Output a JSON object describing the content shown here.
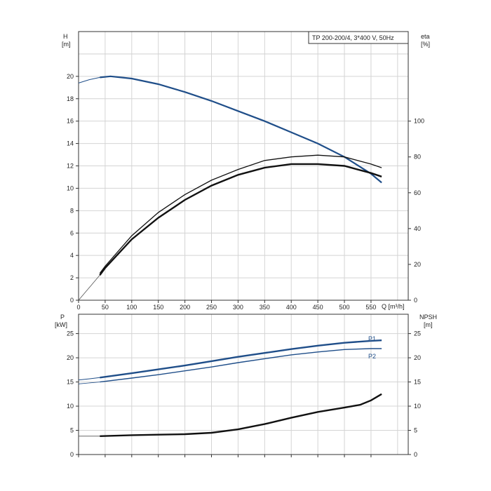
{
  "chart_data": [
    {
      "type": "line",
      "title": "TP 200-200/4, 3*400 V, 50Hz",
      "xlabel": "Q [m³/h]",
      "ylabel": "H\n[m]",
      "ylabel_right": "eta\n[%]",
      "xlim": [
        0,
        620
      ],
      "ylim": [
        0,
        24
      ],
      "ylim_right": [
        0,
        150
      ],
      "x_ticks": [
        "0",
        "50",
        "100",
        "150",
        "200",
        "250",
        "300",
        "350",
        "400",
        "450",
        "500",
        "550"
      ],
      "y_ticks": [
        "0",
        "2",
        "4",
        "6",
        "8",
        "10",
        "12",
        "14",
        "16",
        "18",
        "20"
      ],
      "y_right_ticks": [
        "0",
        "20",
        "40",
        "60",
        "80",
        "100"
      ],
      "grid": true,
      "colors": {
        "head": "#1f4e89",
        "eta": "#111111"
      },
      "series": [
        {
          "key": "head",
          "axis": "left",
          "x": [
            40,
            60,
            80,
            100,
            150,
            200,
            250,
            300,
            350,
            400,
            450,
            500,
            550,
            570
          ],
          "values": [
            19.9,
            20.0,
            19.9,
            19.8,
            19.3,
            18.6,
            17.8,
            16.9,
            16.0,
            15.0,
            14.0,
            12.8,
            11.3,
            10.5
          ],
          "ext_x": [
            0,
            20,
            40
          ],
          "ext_values": [
            19.4,
            19.7,
            19.9
          ]
        },
        {
          "key": "eta1",
          "axis": "right",
          "x": [
            40,
            50,
            100,
            150,
            200,
            250,
            300,
            350,
            400,
            450,
            500,
            550,
            570
          ],
          "values": [
            14,
            18,
            34,
            46,
            56,
            64,
            70,
            74,
            76,
            76,
            75,
            71,
            69
          ],
          "ext_x": [
            0,
            40
          ],
          "ext_values": [
            0,
            14
          ]
        },
        {
          "key": "eta2",
          "axis": "right",
          "x": [
            40,
            50,
            100,
            150,
            200,
            250,
            300,
            350,
            400,
            450,
            500,
            550,
            570
          ],
          "values": [
            15,
            19,
            36,
            49,
            59,
            67,
            73,
            78,
            80,
            81,
            80,
            76,
            74
          ]
        }
      ]
    },
    {
      "type": "line",
      "xlabel": "",
      "ylabel": "P\n[kW]",
      "ylabel_right": "NPSH\n[m]",
      "xlim": [
        0,
        620
      ],
      "ylim": [
        0,
        29
      ],
      "ylim_right": [
        0,
        29
      ],
      "y_ticks": [
        "0",
        "5",
        "10",
        "15",
        "20",
        "25"
      ],
      "y_right_ticks": [
        "0",
        "5",
        "10",
        "15",
        "20",
        "25"
      ],
      "grid": true,
      "colors": {
        "power": "#1f4e89",
        "npsh": "#111111"
      },
      "series": [
        {
          "name": "P1",
          "axis": "left",
          "x": [
            40,
            100,
            150,
            200,
            250,
            300,
            350,
            400,
            450,
            500,
            550,
            570
          ],
          "values": [
            15.9,
            16.8,
            17.6,
            18.4,
            19.3,
            20.2,
            21.0,
            21.8,
            22.5,
            23.1,
            23.5,
            23.6
          ],
          "ext_x": [
            0,
            40
          ],
          "ext_values": [
            15.4,
            15.9
          ]
        },
        {
          "name": "P2",
          "axis": "left",
          "x": [
            40,
            100,
            150,
            200,
            250,
            300,
            350,
            400,
            450,
            500,
            550,
            570
          ],
          "values": [
            15.0,
            15.8,
            16.5,
            17.3,
            18.1,
            19.0,
            19.8,
            20.6,
            21.2,
            21.7,
            21.9,
            21.9
          ],
          "ext_x": [
            0,
            40
          ],
          "ext_values": [
            14.6,
            15.0
          ]
        },
        {
          "key": "npsh",
          "axis": "right",
          "x": [
            40,
            100,
            150,
            200,
            250,
            300,
            350,
            400,
            450,
            500,
            530,
            550,
            570
          ],
          "values": [
            3.8,
            4.0,
            4.1,
            4.2,
            4.5,
            5.2,
            6.3,
            7.6,
            8.8,
            9.7,
            10.3,
            11.2,
            12.5
          ],
          "ext_x": [
            0,
            40
          ],
          "ext_values": [
            3.8,
            3.8
          ]
        }
      ]
    }
  ]
}
